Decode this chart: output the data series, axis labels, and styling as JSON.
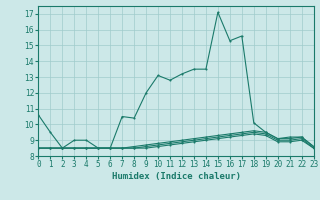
{
  "title": "",
  "xlabel": "Humidex (Indice chaleur)",
  "ylabel": "",
  "bg_color": "#cce8e8",
  "grid_color": "#a0cccc",
  "line_color": "#1a7a6a",
  "xlim": [
    0,
    23
  ],
  "ylim": [
    8,
    17.5
  ],
  "yticks": [
    8,
    9,
    10,
    11,
    12,
    13,
    14,
    15,
    16,
    17
  ],
  "xticks": [
    0,
    1,
    2,
    3,
    4,
    5,
    6,
    7,
    8,
    9,
    10,
    11,
    12,
    13,
    14,
    15,
    16,
    17,
    18,
    19,
    20,
    21,
    22,
    23
  ],
  "series": [
    [
      10.6,
      9.5,
      8.5,
      9.0,
      9.0,
      8.5,
      8.5,
      10.5,
      10.4,
      12.0,
      13.1,
      12.8,
      13.2,
      13.5,
      13.5,
      17.1,
      15.3,
      15.6,
      10.1,
      9.5,
      9.1,
      9.2,
      9.2,
      8.6
    ],
    [
      8.5,
      8.5,
      8.5,
      8.5,
      8.5,
      8.5,
      8.5,
      8.5,
      8.6,
      8.7,
      8.8,
      8.9,
      9.0,
      9.1,
      9.2,
      9.3,
      9.4,
      9.5,
      9.6,
      9.5,
      9.1,
      9.1,
      9.2,
      8.6
    ],
    [
      8.5,
      8.5,
      8.5,
      8.5,
      8.5,
      8.5,
      8.5,
      8.5,
      8.5,
      8.6,
      8.7,
      8.8,
      8.9,
      9.0,
      9.1,
      9.2,
      9.3,
      9.4,
      9.5,
      9.4,
      9.0,
      9.0,
      9.1,
      8.5
    ],
    [
      8.5,
      8.5,
      8.5,
      8.5,
      8.5,
      8.5,
      8.5,
      8.5,
      8.5,
      8.5,
      8.6,
      8.7,
      8.8,
      8.9,
      9.0,
      9.1,
      9.2,
      9.3,
      9.4,
      9.3,
      8.9,
      8.9,
      9.0,
      8.5
    ]
  ],
  "marker": ".",
  "markersize": 3,
  "linewidth": 0.8,
  "tick_fontsize": 5.5,
  "xlabel_fontsize": 6.5
}
